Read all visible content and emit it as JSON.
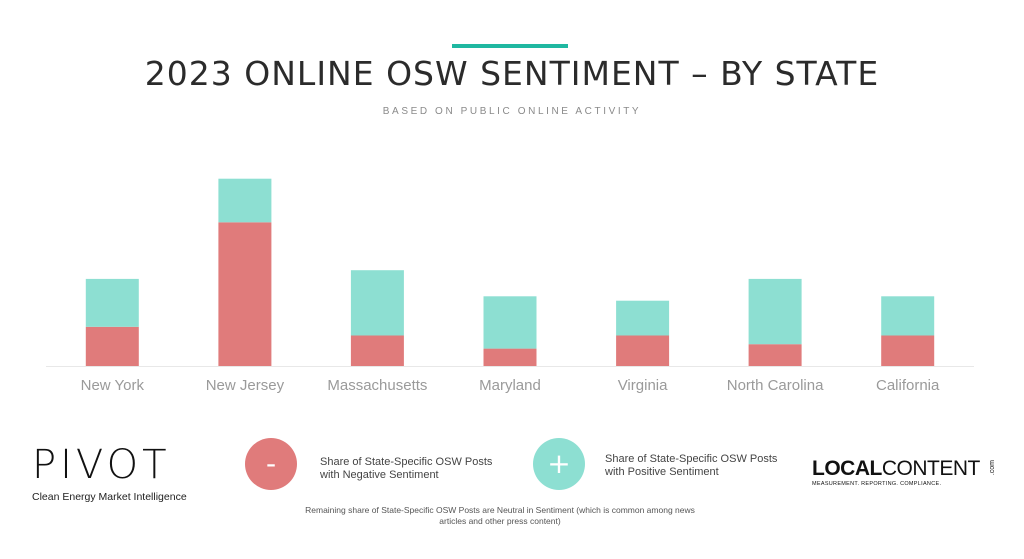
{
  "header": {
    "title": "2023 ONLINE OSW SENTIMENT – BY STATE",
    "subtitle": "BASED ON PUBLIC ONLINE ACTIVITY"
  },
  "colors": {
    "accent": "#1fb8a1",
    "negative": "#e07b7b",
    "positive": "#8ddfd2",
    "axis": "#e8e8e8",
    "tick_text": "#9a9a9a"
  },
  "chart_data": {
    "type": "bar",
    "stacked": true,
    "categories": [
      "New York",
      "New Jersey",
      "Massachusetts",
      "Maryland",
      "Virginia",
      "North Carolina",
      "California"
    ],
    "series": [
      {
        "name": "Share of State-Specific OSW Posts with Negative Sentiment",
        "values": [
          9,
          33,
          7,
          4,
          7,
          5,
          7
        ]
      },
      {
        "name": "Share of State-Specific OSW Posts with Positive Sentiment",
        "values": [
          11,
          10,
          15,
          12,
          8,
          15,
          9
        ]
      }
    ],
    "ylim": [
      0,
      45
    ],
    "grid": false,
    "legend_placement": "bottom"
  },
  "legend": {
    "negative_symbol": "-",
    "positive_symbol": "+",
    "negative_text": "Share of State-Specific OSW Posts with Negative Sentiment",
    "positive_text": "Share of State-Specific OSW Posts with Positive Sentiment"
  },
  "footnote": "Remaining share of State-Specific OSW Posts are Neutral in Sentiment (which is common among news articles and other press content)",
  "logos": {
    "pivot": "PIVOT",
    "pivot_tagline": "Clean Energy Market Intelligence",
    "localcontent_bold": "LOCAL",
    "localcontent_light": "CONTENT",
    "localcontent_tld": ".com",
    "localcontent_tagline": "MEASUREMENT. REPORTING. COMPLIANCE."
  }
}
